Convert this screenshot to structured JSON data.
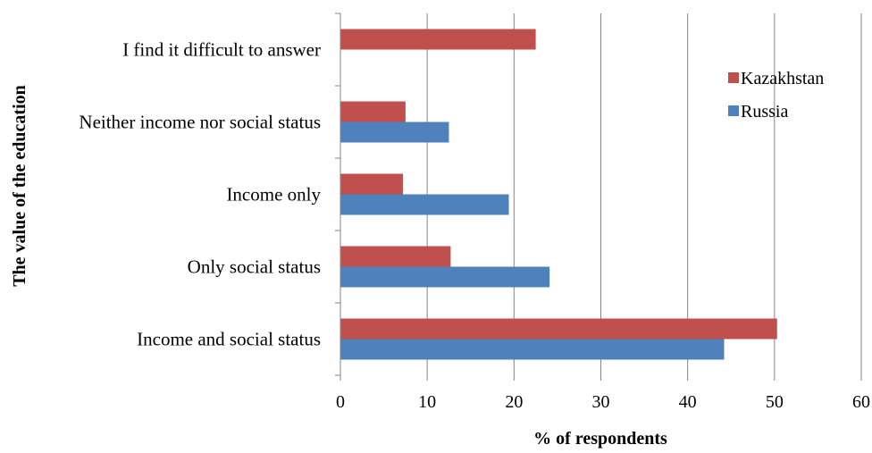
{
  "chart_data": {
    "type": "bar",
    "orientation": "horizontal",
    "categories": [
      "Income and social status",
      "Only social status",
      "Income only",
      "Neither income nor social status",
      "I find it difficult to answer"
    ],
    "series": [
      {
        "name": "Russia",
        "color": "#4F81BD",
        "values": [
          44.2,
          24.1,
          19.4,
          12.5,
          null
        ]
      },
      {
        "name": "Kazakhstan",
        "color": "#C0504D",
        "values": [
          50.3,
          12.7,
          7.2,
          7.5,
          22.5
        ]
      }
    ],
    "xlabel": "% of respondents",
    "ylabel": "The value of the education",
    "xlim": [
      0,
      60
    ],
    "xticks": [
      "0",
      "10",
      "20",
      "30",
      "40",
      "50",
      "60"
    ],
    "grid": "vertical",
    "legend": {
      "position": "right",
      "entries": [
        "Kazakhstan",
        "Russia"
      ]
    }
  }
}
